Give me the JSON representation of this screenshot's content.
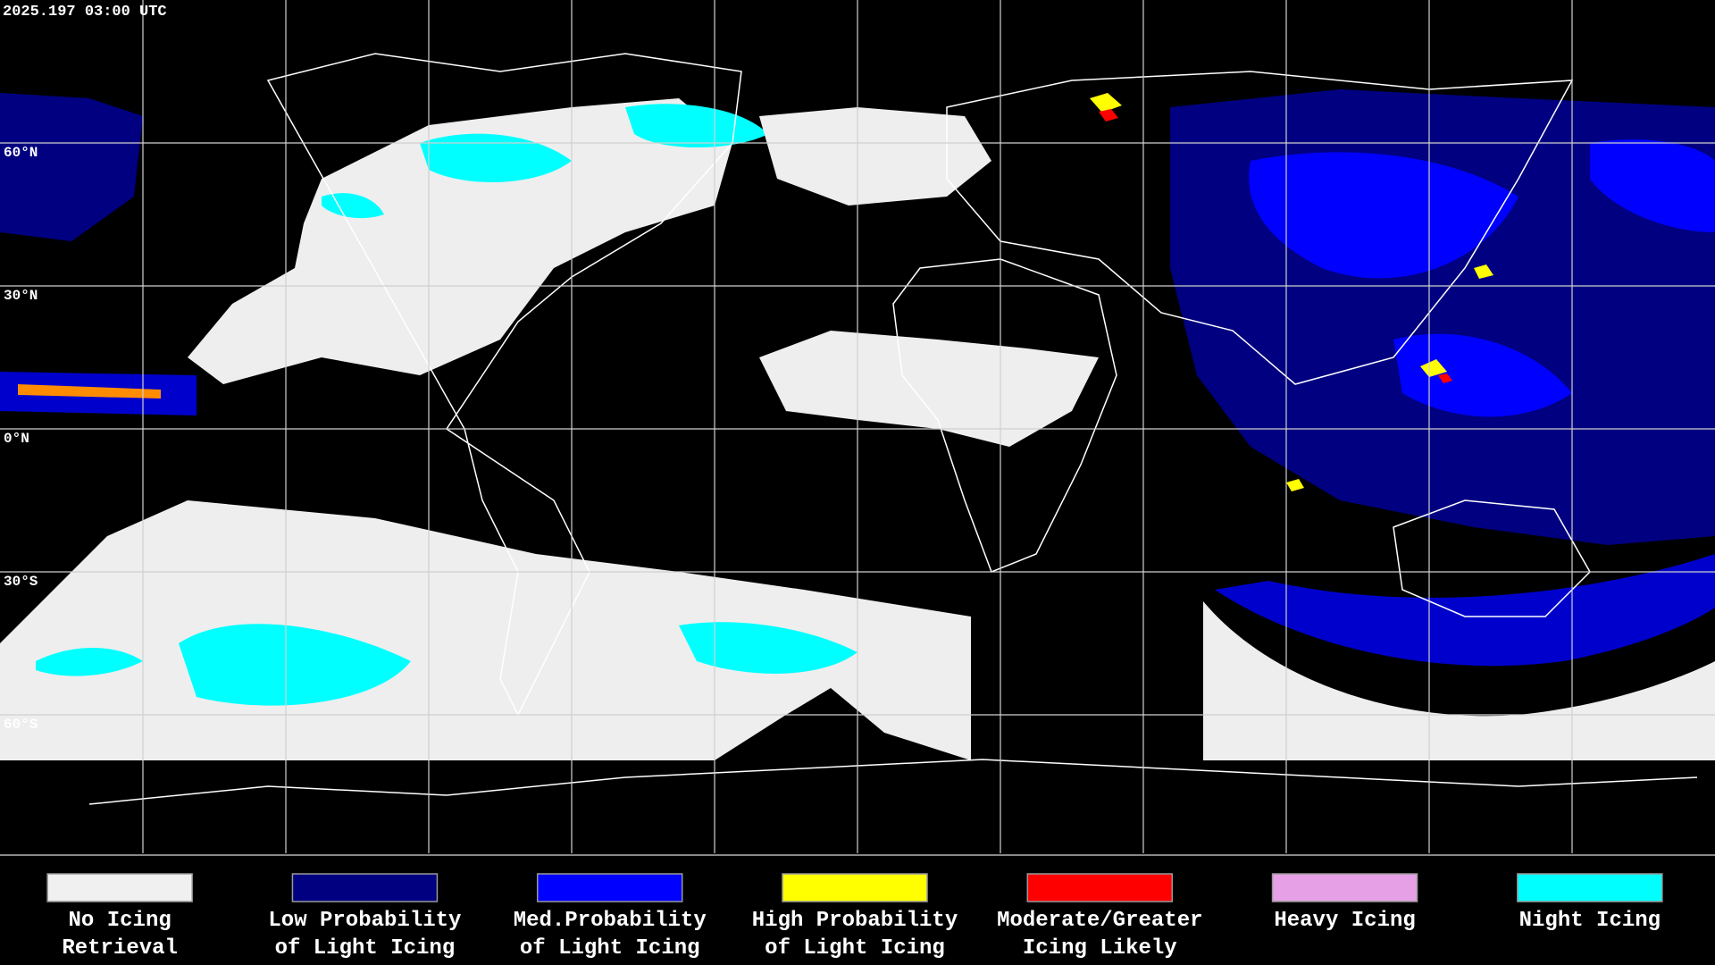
{
  "header": {
    "timestamp": "2025.197 03:00 UTC"
  },
  "map": {
    "latitude_labels": [
      "60°N",
      "30°N",
      "0°N",
      "30°S",
      "60°S"
    ]
  },
  "legend": {
    "items": [
      {
        "label_lines": [
          "No Icing",
          "Retrieval"
        ],
        "color": "#f0f0f0"
      },
      {
        "label_lines": [
          "Low Probability",
          "of Light Icing"
        ],
        "color": "#000080"
      },
      {
        "label_lines": [
          "Med.Probability",
          "of Light Icing"
        ],
        "color": "#0000ff"
      },
      {
        "label_lines": [
          "High Probability",
          "of Light Icing"
        ],
        "color": "#ffff00"
      },
      {
        "label_lines": [
          "Moderate/Greater",
          "Icing Likely"
        ],
        "color": "#ff0000"
      },
      {
        "label_lines": [
          "Heavy Icing"
        ],
        "color": "#e6a0e6"
      },
      {
        "label_lines": [
          "Night Icing"
        ],
        "color": "#00ffff"
      }
    ]
  }
}
